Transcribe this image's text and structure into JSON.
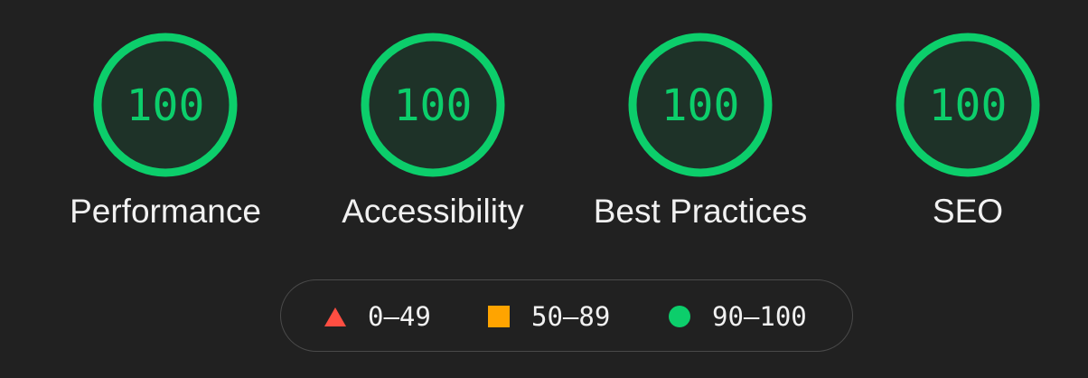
{
  "colors": {
    "background": "#212121",
    "pass": "#0cce6b",
    "average": "#ffa400",
    "fail": "#ff4e42",
    "text": "#f1f1f1"
  },
  "gauges": [
    {
      "score": "100",
      "label": "Performance"
    },
    {
      "score": "100",
      "label": "Accessibility"
    },
    {
      "score": "100",
      "label": "Best Practices"
    },
    {
      "score": "100",
      "label": "SEO"
    }
  ],
  "legend": {
    "fail": {
      "range": "0–49",
      "icon": "triangle-icon"
    },
    "average": {
      "range": "50–89",
      "icon": "square-icon"
    },
    "pass": {
      "range": "90–100",
      "icon": "circle-icon"
    }
  }
}
